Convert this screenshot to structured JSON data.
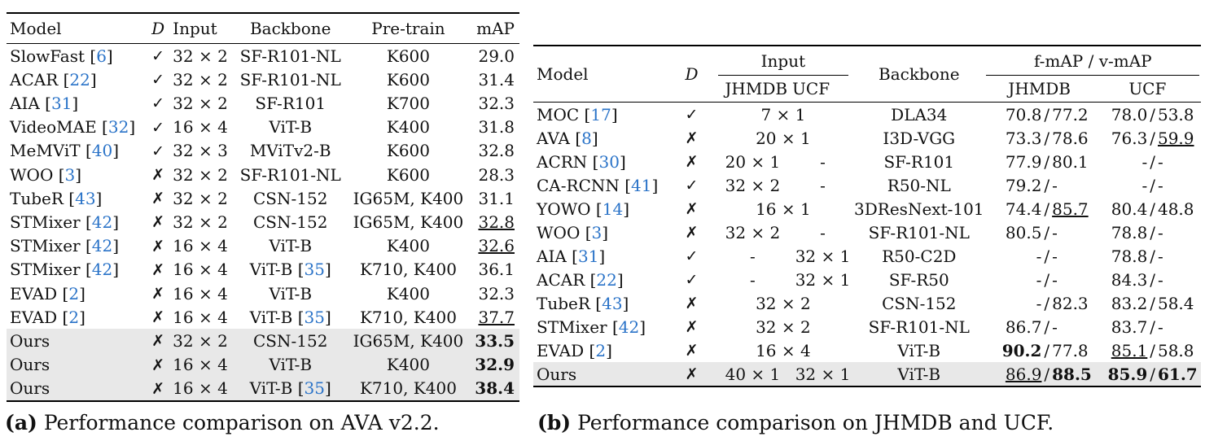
{
  "tableA": {
    "headers": {
      "model": "Model",
      "d": "D",
      "input": "Input",
      "backbone": "Backbone",
      "pretrain": "Pre-train",
      "map": "mAP"
    },
    "rows": [
      {
        "name": "SlowFast",
        "ref": "6",
        "d": "✓",
        "input": "32 × 2",
        "backbone": "SF-R101-NL",
        "bref": "",
        "pretrain": "K600",
        "map": "29.0",
        "style": ""
      },
      {
        "name": "ACAR",
        "ref": "22",
        "d": "✓",
        "input": "32 × 2",
        "backbone": "SF-R101-NL",
        "bref": "",
        "pretrain": "K600",
        "map": "31.4",
        "style": ""
      },
      {
        "name": "AIA",
        "ref": "31",
        "d": "✓",
        "input": "32 × 2",
        "backbone": "SF-R101",
        "bref": "",
        "pretrain": "K700",
        "map": "32.3",
        "style": ""
      },
      {
        "name": "VideoMAE",
        "ref": "32",
        "d": "✓",
        "input": "16 × 4",
        "backbone": "ViT-B",
        "bref": "",
        "pretrain": "K400",
        "map": "31.8",
        "style": ""
      },
      {
        "name": "MeMViT",
        "ref": "40",
        "d": "✓",
        "input": "32 × 3",
        "backbone": "MViTv2-B",
        "bref": "",
        "pretrain": "K600",
        "map": "32.8",
        "style": ""
      },
      {
        "name": "WOO",
        "ref": "3",
        "d": "✗",
        "input": "32 × 2",
        "backbone": "SF-R101-NL",
        "bref": "",
        "pretrain": "K600",
        "map": "28.3",
        "style": ""
      },
      {
        "name": "TubeR",
        "ref": "43",
        "d": "✗",
        "input": "32 × 2",
        "backbone": "CSN-152",
        "bref": "",
        "pretrain": "IG65M, K400",
        "map": "31.1",
        "style": ""
      },
      {
        "name": "STMixer",
        "ref": "42",
        "d": "✗",
        "input": "32 × 2",
        "backbone": "CSN-152",
        "bref": "",
        "pretrain": "IG65M, K400",
        "map": "32.8",
        "style": "u"
      },
      {
        "name": "STMixer",
        "ref": "42",
        "d": "✗",
        "input": "16 × 4",
        "backbone": "ViT-B",
        "bref": "",
        "pretrain": "K400",
        "map": "32.6",
        "style": "u"
      },
      {
        "name": "STMixer",
        "ref": "42",
        "d": "✗",
        "input": "16 × 4",
        "backbone": "ViT-B",
        "bref": "35",
        "pretrain": "K710, K400",
        "map": "36.1",
        "style": ""
      },
      {
        "name": "EVAD",
        "ref": "2",
        "d": "✗",
        "input": "16 × 4",
        "backbone": "ViT-B",
        "bref": "",
        "pretrain": "K400",
        "map": "32.3",
        "style": ""
      },
      {
        "name": "EVAD",
        "ref": "2",
        "d": "✗",
        "input": "16 × 4",
        "backbone": "ViT-B",
        "bref": "35",
        "pretrain": "K710, K400",
        "map": "37.7",
        "style": "u"
      },
      {
        "name": "Ours",
        "ref": "",
        "d": "✗",
        "input": "32 × 2",
        "backbone": "CSN-152",
        "bref": "",
        "pretrain": "IG65M, K400",
        "map": "33.5",
        "style": "b"
      },
      {
        "name": "Ours",
        "ref": "",
        "d": "✗",
        "input": "16 × 4",
        "backbone": "ViT-B",
        "bref": "",
        "pretrain": "K400",
        "map": "32.9",
        "style": "b"
      },
      {
        "name": "Ours",
        "ref": "",
        "d": "✗",
        "input": "16 × 4",
        "backbone": "ViT-B",
        "bref": "35",
        "pretrain": "K710, K400",
        "map": "38.4",
        "style": "b"
      }
    ]
  },
  "tableB": {
    "headers": {
      "model": "Model",
      "d": "D",
      "input": "Input",
      "jhmdb": "JHMDB",
      "ucf": "UCF",
      "backbone": "Backbone",
      "fv": "f-mAP / v-mAP",
      "res_jhmdb": "JHMDB",
      "res_ucf": "UCF"
    },
    "rows": [
      {
        "name": "MOC",
        "ref": "17",
        "d": "✓",
        "in_j": "7 × 1",
        "in_u": "",
        "merged": true,
        "backbone": "DLA34",
        "jf": "70.8",
        "jv": "77.2",
        "uf": "78.0",
        "uv": "53.8",
        "s": [
          "",
          "",
          "",
          ""
        ]
      },
      {
        "name": "AVA",
        "ref": "8",
        "d": "✗",
        "in_j": "20 × 1",
        "in_u": "",
        "merged": true,
        "backbone": "I3D-VGG",
        "jf": "73.3",
        "jv": "78.6",
        "uf": "76.3",
        "uv": "59.9",
        "s": [
          "",
          "",
          "",
          "u"
        ]
      },
      {
        "name": "ACRN",
        "ref": "30",
        "d": "✗",
        "in_j": "20 × 1",
        "in_u": "-",
        "merged": false,
        "backbone": "SF-R101",
        "jf": "77.9",
        "jv": "80.1",
        "uf": "-",
        "uv": "-",
        "s": [
          "",
          "",
          "",
          ""
        ]
      },
      {
        "name": "CA-RCNN",
        "ref": "41",
        "d": "✓",
        "in_j": "32 × 2",
        "in_u": "-",
        "merged": false,
        "backbone": "R50-NL",
        "jf": "79.2",
        "jv": "-",
        "uf": "-",
        "uv": "-",
        "s": [
          "",
          "",
          "",
          ""
        ]
      },
      {
        "name": "YOWO",
        "ref": "14",
        "d": "✗",
        "in_j": "16 × 1",
        "in_u": "",
        "merged": true,
        "backbone": "3DResNext-101",
        "jf": "74.4",
        "jv": "85.7",
        "uf": "80.4",
        "uv": "48.8",
        "s": [
          "",
          "u",
          "",
          ""
        ]
      },
      {
        "name": "WOO",
        "ref": "3",
        "d": "✗",
        "in_j": "32 × 2",
        "in_u": "-",
        "merged": false,
        "backbone": "SF-R101-NL",
        "jf": "80.5",
        "jv": "-",
        "uf": "78.8",
        "uv": "-",
        "s": [
          "",
          "",
          "",
          ""
        ]
      },
      {
        "name": "AIA",
        "ref": "31",
        "d": "✓",
        "in_j": "-",
        "in_u": "32 × 1",
        "merged": false,
        "backbone": "R50-C2D",
        "jf": "-",
        "jv": "-",
        "uf": "78.8",
        "uv": "-",
        "s": [
          "",
          "",
          "",
          ""
        ]
      },
      {
        "name": "ACAR",
        "ref": "22",
        "d": "✓",
        "in_j": "-",
        "in_u": "32 × 1",
        "merged": false,
        "backbone": "SF-R50",
        "jf": "-",
        "jv": "-",
        "uf": "84.3",
        "uv": "-",
        "s": [
          "",
          "",
          "",
          ""
        ]
      },
      {
        "name": "TubeR",
        "ref": "43",
        "d": "✗",
        "in_j": "32 × 2",
        "in_u": "",
        "merged": true,
        "backbone": "CSN-152",
        "jf": "-",
        "jv": "82.3",
        "uf": "83.2",
        "uv": "58.4",
        "s": [
          "",
          "",
          "",
          ""
        ]
      },
      {
        "name": "STMixer",
        "ref": "42",
        "d": "✗",
        "in_j": "32 × 2",
        "in_u": "",
        "merged": true,
        "backbone": "SF-R101-NL",
        "jf": "86.7",
        "jv": "-",
        "uf": "83.7",
        "uv": "-",
        "s": [
          "",
          "",
          "",
          ""
        ]
      },
      {
        "name": "EVAD",
        "ref": "2",
        "d": "✗",
        "in_j": "16 × 4",
        "in_u": "",
        "merged": true,
        "backbone": "ViT-B",
        "jf": "90.2",
        "jv": "77.8",
        "uf": "85.1",
        "uv": "58.8",
        "s": [
          "b",
          "",
          "u",
          ""
        ]
      },
      {
        "name": "Ours",
        "ref": "",
        "d": "✗",
        "in_j": "40 × 1",
        "in_u": "32 × 1",
        "merged": false,
        "backbone": "ViT-B",
        "jf": "86.9",
        "jv": "88.5",
        "uf": "85.9",
        "uv": "61.7",
        "s": [
          "u",
          "b",
          "b",
          "b"
        ]
      }
    ]
  },
  "captions": {
    "a_label": "(a)",
    "a_text": "Performance comparison on AVA v2.2.",
    "b_label": "(b)",
    "b_text": "Performance comparison on JHMDB and UCF."
  }
}
